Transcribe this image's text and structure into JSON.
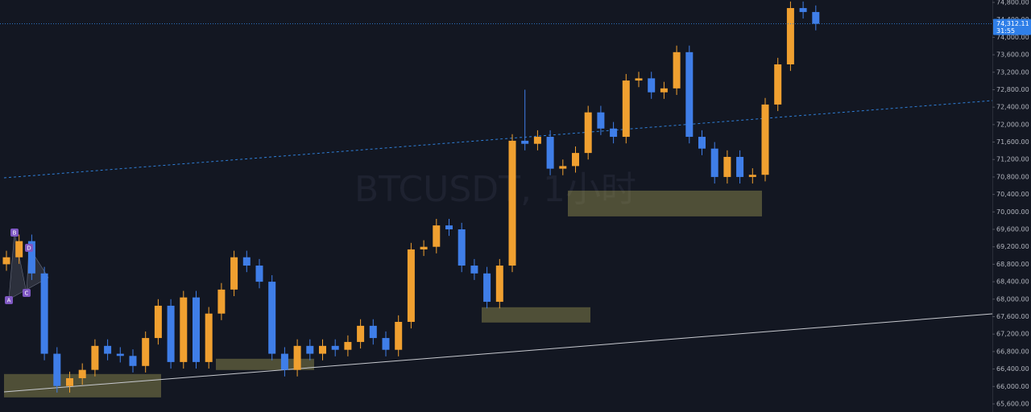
{
  "chart_data": {
    "type": "candlestick",
    "watermark": "BTCUSDT, 1小时",
    "up_color": "#f0a030",
    "down_color": "#3f7ee8",
    "ylim": [
      65415,
      74855
    ],
    "yticks": [
      {
        "value": 65600,
        "label": "65,600.00"
      },
      {
        "value": 66000,
        "label": "66,000.00"
      },
      {
        "value": 66400,
        "label": "66,400.00"
      },
      {
        "value": 66800,
        "label": "66,800.00"
      },
      {
        "value": 67200,
        "label": "67,200.00"
      },
      {
        "value": 67600,
        "label": "67,600.00"
      },
      {
        "value": 68000,
        "label": "68,000.00"
      },
      {
        "value": 68400,
        "label": "68,400.00"
      },
      {
        "value": 68800,
        "label": "68,800.00"
      },
      {
        "value": 69200,
        "label": "69,200.00"
      },
      {
        "value": 69600,
        "label": "69,600.00"
      },
      {
        "value": 70000,
        "label": "70,000.00"
      },
      {
        "value": 70400,
        "label": "70,400.00"
      },
      {
        "value": 70800,
        "label": "70,800.00"
      },
      {
        "value": 71200,
        "label": "71,200.00"
      },
      {
        "value": 71600,
        "label": "71,600.00"
      },
      {
        "value": 72000,
        "label": "72,000.00"
      },
      {
        "value": 72400,
        "label": "72,400.00"
      },
      {
        "value": 72800,
        "label": "72,800.00"
      },
      {
        "value": 73200,
        "label": "73,200.00"
      },
      {
        "value": 73600,
        "label": "73,600.00"
      },
      {
        "value": 74000,
        "label": "74,000.00"
      },
      {
        "value": 74400,
        "label": "74,400.00"
      },
      {
        "value": 74800,
        "label": "74,800.00"
      }
    ],
    "open": [
      68800,
      68960,
      69330,
      68590,
      66750,
      66010,
      66190,
      66380,
      66930,
      66750,
      66700,
      66470,
      67110,
      67850,
      66560,
      68040,
      66560,
      67670,
      68220,
      68960,
      68770,
      68400,
      66750,
      66380,
      66930,
      66750,
      66930,
      66840,
      67020,
      67390,
      67110,
      66840,
      67480,
      69140,
      69200,
      69690,
      69600,
      68770,
      68590,
      67940,
      68770,
      71630,
      71560,
      71720,
      70990,
      71050,
      71350,
      72280,
      71910,
      71720,
      73010,
      73060,
      72740,
      72830,
      73660,
      71720,
      71450,
      70800,
      71260,
      70800,
      70850,
      72460,
      73380,
      74670,
      74580
    ],
    "high": [
      69110,
      69480,
      69480,
      68740,
      66900,
      66340,
      66530,
      67080,
      67080,
      66900,
      66850,
      67260,
      68000,
      68000,
      68190,
      68190,
      67820,
      68370,
      69110,
      69110,
      68920,
      68550,
      66900,
      67080,
      67080,
      67080,
      67080,
      67170,
      67540,
      67540,
      67260,
      67630,
      69290,
      69350,
      69840,
      69840,
      69750,
      68920,
      68740,
      68920,
      71780,
      72800,
      71870,
      71870,
      71200,
      71500,
      72430,
      72430,
      72060,
      73160,
      73210,
      73210,
      72980,
      73810,
      73810,
      71870,
      71600,
      71410,
      71410,
      71000,
      72610,
      73530,
      74820,
      74820,
      74730
    ],
    "low": [
      68650,
      68810,
      68440,
      66600,
      65860,
      65860,
      66040,
      66230,
      66600,
      66550,
      66320,
      66320,
      66960,
      66410,
      66410,
      66410,
      66410,
      67520,
      68070,
      68620,
      68250,
      66600,
      66230,
      66230,
      66600,
      66600,
      66690,
      66690,
      66870,
      66960,
      66690,
      66690,
      67330,
      68990,
      69050,
      69450,
      68620,
      68440,
      67790,
      67790,
      68620,
      71410,
      71410,
      70840,
      70840,
      70900,
      71200,
      71760,
      71570,
      71570,
      72860,
      72590,
      72590,
      72680,
      71570,
      71300,
      70650,
      70650,
      70650,
      70650,
      70700,
      72310,
      73230,
      74430,
      74160
    ],
    "close": [
      68960,
      69330,
      68590,
      66750,
      66010,
      66190,
      66380,
      66930,
      66750,
      66700,
      66470,
      67110,
      67850,
      66560,
      68040,
      66560,
      67670,
      68220,
      68960,
      68770,
      68400,
      66750,
      66380,
      66930,
      66750,
      66930,
      66840,
      67020,
      67390,
      67110,
      66840,
      67480,
      69140,
      69200,
      69690,
      69600,
      68770,
      68590,
      67940,
      68770,
      71630,
      71560,
      71720,
      70990,
      71050,
      71350,
      72280,
      71910,
      71720,
      73010,
      73060,
      72740,
      72830,
      73660,
      71720,
      71450,
      70800,
      71260,
      70800,
      70850,
      72460,
      73380,
      74670,
      74580,
      74310
    ],
    "zones": [
      {
        "top": 66285,
        "bottom": 65750
      },
      {
        "top": 66635,
        "bottom": 66377
      },
      {
        "top": 67815,
        "bottom": 67465
      },
      {
        "top": 70487,
        "bottom": 69897
      }
    ],
    "pattern_points": [
      "A",
      "B",
      "C",
      "D"
    ],
    "last_price": {
      "value": 74312.11,
      "label": "74,312.11"
    },
    "countdown": "31:55"
  }
}
